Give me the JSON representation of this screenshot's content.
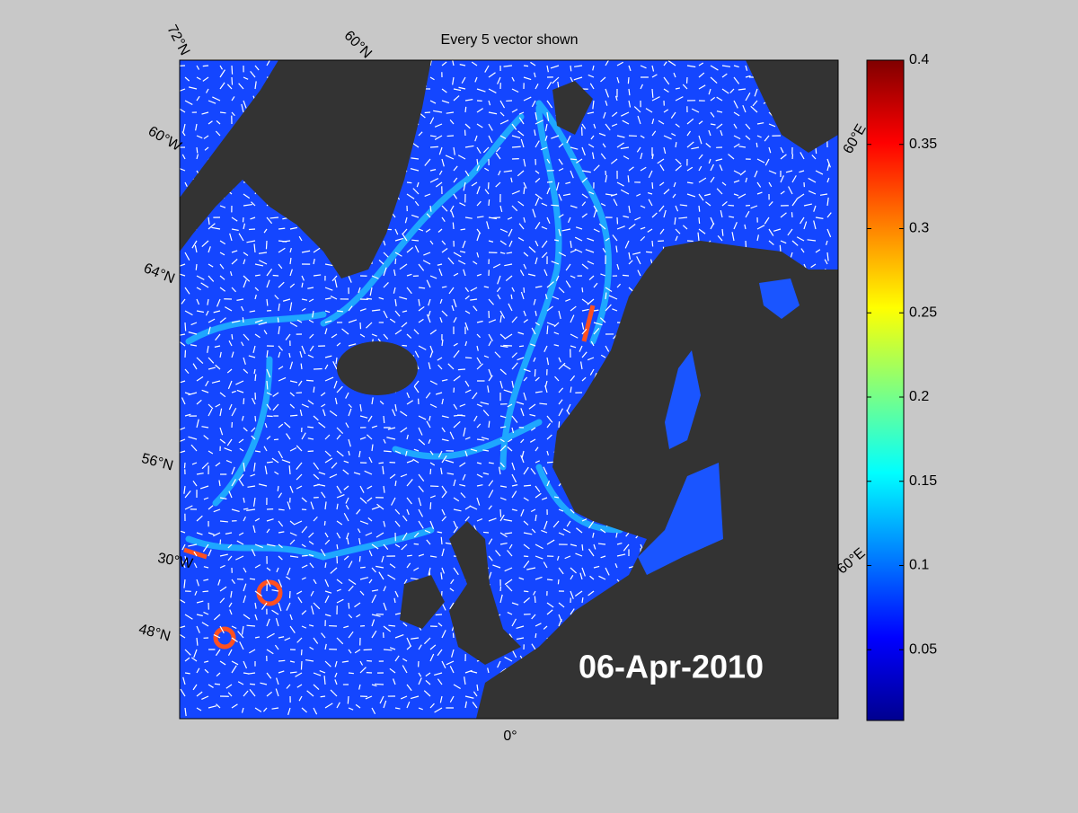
{
  "title": "Every 5 vector shown",
  "date": "06-Apr-2010",
  "graticule_labels": [
    "72°N",
    "60°N",
    "60°W",
    "64°N",
    "56°N",
    "30°W",
    "48°N",
    "0°",
    "60°E",
    "60°E"
  ],
  "colorbar": {
    "colormap": "jet",
    "lim": [
      0.008,
      0.4
    ],
    "ticks": [
      0.05,
      0.1,
      0.15,
      0.2,
      0.25,
      0.3,
      0.35,
      0.4
    ]
  }
}
